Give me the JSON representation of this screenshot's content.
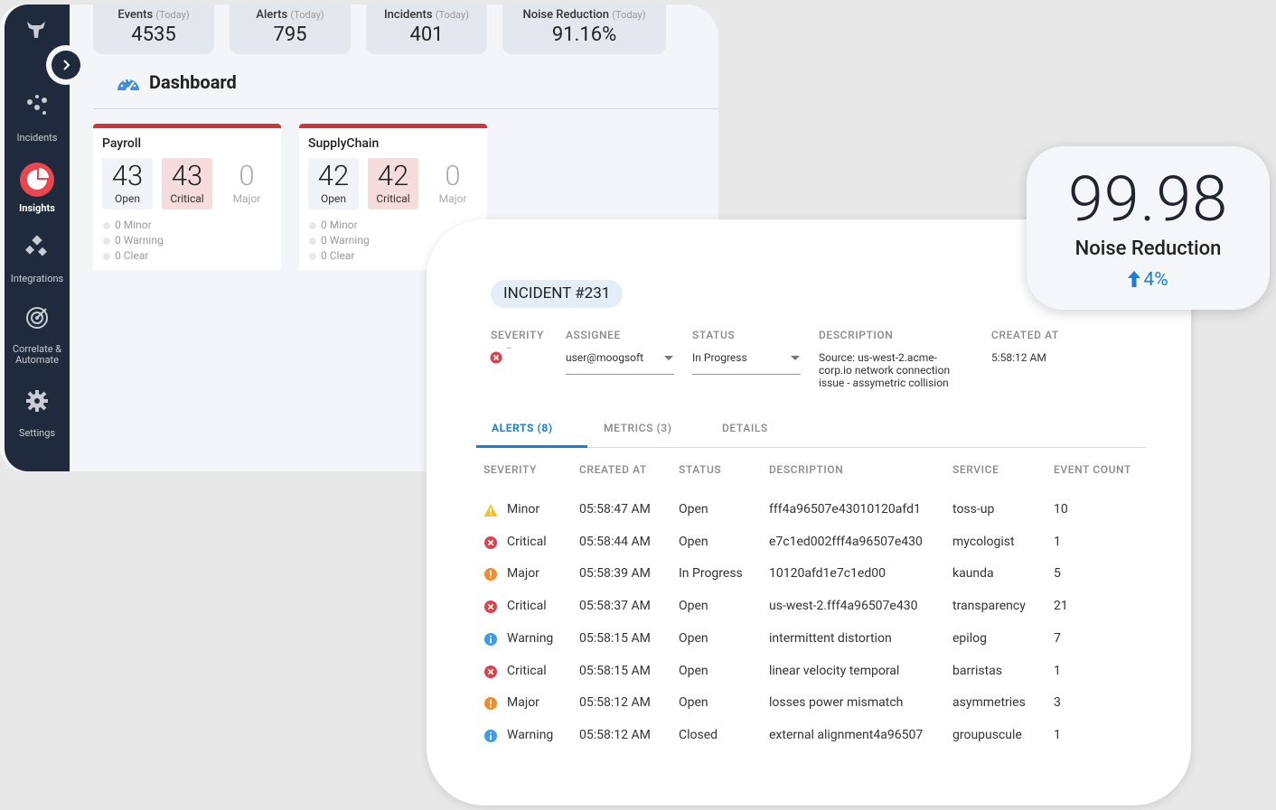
{
  "sidebar": {
    "items": [
      "Incidents",
      "Insights",
      "Integrations",
      "Correlate & Automate",
      "Settings"
    ],
    "active": 1
  },
  "stats": [
    {
      "label": "Events",
      "period": "(Today)",
      "value": "4535"
    },
    {
      "label": "Alerts",
      "period": "(Today)",
      "value": "795"
    },
    {
      "label": "Incidents",
      "period": "(Today)",
      "value": "401"
    },
    {
      "label": "Noise Reduction",
      "period": "(Today)",
      "value": "91.16%"
    }
  ],
  "dashboard": {
    "title": "Dashboard",
    "services": [
      {
        "name": "Payroll",
        "counts": [
          {
            "value": "43",
            "label": "Open"
          },
          {
            "value": "43",
            "label": "Critical"
          },
          {
            "value": "0",
            "label": "Major"
          }
        ],
        "statuses": [
          "0 Minor",
          "0 Warning",
          "0 Clear"
        ]
      },
      {
        "name": "SupplyChain",
        "counts": [
          {
            "value": "42",
            "label": "Open"
          },
          {
            "value": "42",
            "label": "Critical"
          },
          {
            "value": "0",
            "label": "Major"
          }
        ],
        "statuses": [
          "0 Minor",
          "0 Warning",
          "0 Clear"
        ]
      }
    ]
  },
  "incident": {
    "title": "INCIDENT #231",
    "severity": {
      "label": "SEVERITY",
      "value": "–",
      "color": "#d9434a"
    },
    "fields": [
      {
        "label": "ASSIGNEE",
        "value": "user@moogsoft",
        "dropdown": true
      },
      {
        "label": "STATUS",
        "value": "In Progress",
        "dropdown": true
      },
      {
        "label": "DESCRIPTION",
        "value": "Source: us-west-2.acme-corp.io network connection issue - assymetric collision",
        "dropdown": false
      },
      {
        "label": "CREATED AT",
        "value": "5:58:12 AM",
        "dropdown": false
      }
    ],
    "tabs": [
      "ALERTS (8)",
      "METRICS (3)",
      "DETAILS"
    ],
    "active_tab": 0,
    "table": {
      "columns": [
        "SEVERITY",
        "CREATED AT",
        "STATUS",
        "DESCRIPTION",
        "SERVICE",
        "EVENT COUNT"
      ],
      "rows": [
        {
          "color": "#f2c12e",
          "cells": [
            "Minor",
            "05:58:47 AM",
            "Open",
            "fff4a96507e43010120afd1",
            "toss-up",
            "10"
          ]
        },
        {
          "color": "#d9434a",
          "cells": [
            "Critical",
            "05:58:44 AM",
            "Open",
            "e7c1ed002fff4a96507e430",
            "mycologist",
            "1"
          ]
        },
        {
          "color": "#f08c2e",
          "cells": [
            "Major",
            "05:58:39 AM",
            "In Progress",
            "10120afd1e7c1ed00",
            "kaunda",
            "5"
          ]
        },
        {
          "color": "#d9434a",
          "cells": [
            "Critical",
            "05:58:37 AM",
            "Open",
            "us-west-2.fff4a96507e430",
            "transparency",
            "21"
          ]
        },
        {
          "color": "#3d9be9",
          "cells": [
            "Warning",
            "05:58:15 AM",
            "Open",
            "intermittent  distortion",
            "epilog",
            "7"
          ]
        },
        {
          "color": "#d9434a",
          "cells": [
            "Critical",
            "05:58:15 AM",
            "Open",
            "linear velocity temporal",
            "barristas",
            "1"
          ]
        },
        {
          "color": "#f08c2e",
          "cells": [
            "Major",
            "05:58:12 AM",
            "Open",
            "losses power mismatch",
            "asymmetries",
            "3"
          ]
        },
        {
          "color": "#3d9be9",
          "cells": [
            "Warning",
            "05:58:12 AM",
            "Closed",
            "external alignment4a96507",
            "groupuscule",
            "1"
          ]
        }
      ]
    }
  },
  "noise_card": {
    "value": "99.98",
    "label": "Noise Reduction",
    "change": "4%"
  }
}
